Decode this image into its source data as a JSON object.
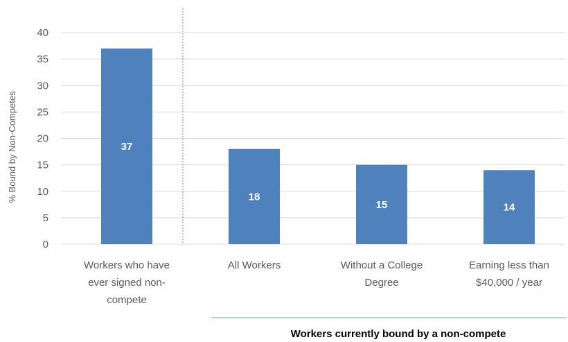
{
  "chart_data": {
    "type": "bar",
    "title": "",
    "ylabel": "% Bound by Non-Competes",
    "xlabel": "",
    "ylim": [
      0,
      40
    ],
    "yticks": [
      0,
      5,
      10,
      15,
      20,
      25,
      30,
      35,
      40
    ],
    "grid": true,
    "categories": [
      [
        "Workers who have",
        "ever signed non-",
        "compete"
      ],
      [
        "All Workers"
      ],
      [
        "Without a College",
        "Degree"
      ],
      [
        "Earning less than",
        "$40,000 / year"
      ]
    ],
    "values": [
      37,
      18,
      15,
      14
    ],
    "data_labels": [
      "37",
      "18",
      "15",
      "14"
    ],
    "group_label": "Workers currently bound by a non-compete",
    "colors": {
      "bar": "#4f81bd",
      "grid": "#d9d9d9",
      "separator": "#7f7f7f",
      "group_line": "#9dc3e6"
    }
  }
}
